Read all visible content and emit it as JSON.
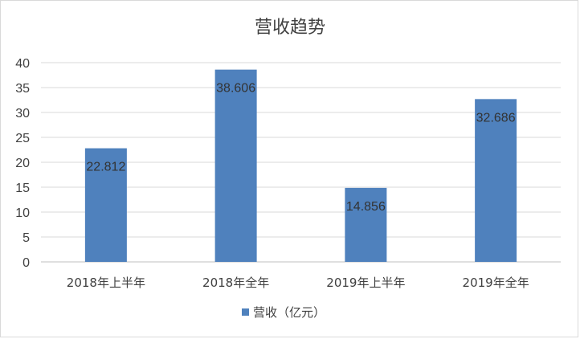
{
  "chart_data": {
    "type": "bar",
    "title": "营收趋势",
    "categories": [
      "2018年上半年",
      "2018年全年",
      "2019年上半年",
      "2019年全年"
    ],
    "series": [
      {
        "name": "营收（亿元）",
        "values": [
          22.812,
          38.606,
          14.856,
          32.686
        ],
        "color": "#4f81bd"
      }
    ],
    "data_labels": [
      "22.812",
      "38.606",
      "14.856",
      "32.686"
    ],
    "y_ticks": [
      "0",
      "5",
      "10",
      "15",
      "20",
      "25",
      "30",
      "35",
      "40"
    ],
    "ylim": [
      0,
      40
    ],
    "xlabel": "",
    "ylabel": "",
    "grid": true,
    "legend_position": "bottom"
  }
}
